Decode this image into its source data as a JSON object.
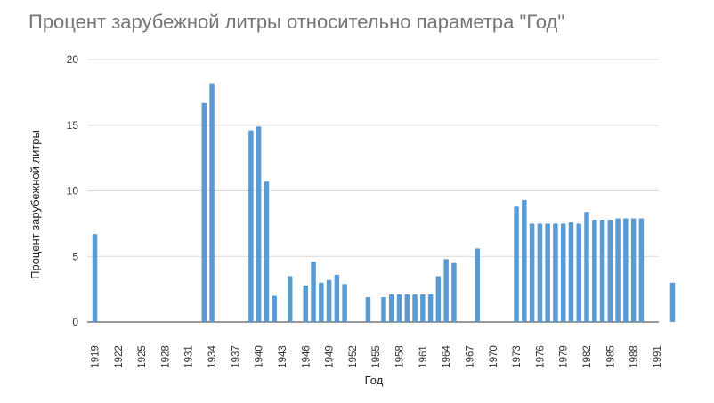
{
  "chart_data": {
    "type": "bar",
    "title": "Процент зарубежной литры  относительно параметра \"Год\"",
    "xlabel": "Год",
    "ylabel": "Процент зарубежной литры",
    "ylim": [
      0,
      20
    ],
    "yticks": [
      0,
      5,
      10,
      15,
      20
    ],
    "grid": true,
    "bar_color": "#5b9bd5",
    "x_tick_labels": [
      "1919",
      "1922",
      "1925",
      "1928",
      "1931",
      "1934",
      "1937",
      "1940",
      "1943",
      "1946",
      "1949",
      "1952",
      "1955",
      "1958",
      "1961",
      "1964",
      "1967",
      "1970",
      "1973",
      "1976",
      "1979",
      "1982",
      "1985",
      "1988",
      "1991"
    ],
    "categories": [
      1919,
      1933,
      1934,
      1939,
      1940,
      1941,
      1942,
      1944,
      1946,
      1947,
      1948,
      1949,
      1950,
      1951,
      1954,
      1956,
      1957,
      1958,
      1959,
      1960,
      1961,
      1962,
      1963,
      1964,
      1965,
      1968,
      1973,
      1974,
      1975,
      1976,
      1977,
      1978,
      1979,
      1980,
      1981,
      1982,
      1983,
      1984,
      1985,
      1986,
      1987,
      1988,
      1989,
      1993
    ],
    "values": [
      6.7,
      16.7,
      18.2,
      14.6,
      14.9,
      10.7,
      2.0,
      3.5,
      2.8,
      4.6,
      3.0,
      3.2,
      3.6,
      2.9,
      1.9,
      1.9,
      2.1,
      2.1,
      2.1,
      2.1,
      2.1,
      2.1,
      3.5,
      4.8,
      4.5,
      5.6,
      8.8,
      9.3,
      7.5,
      7.5,
      7.5,
      7.5,
      7.5,
      7.6,
      7.5,
      8.4,
      7.8,
      7.8,
      7.8,
      7.9,
      7.9,
      7.9,
      7.9,
      3.0
    ]
  }
}
